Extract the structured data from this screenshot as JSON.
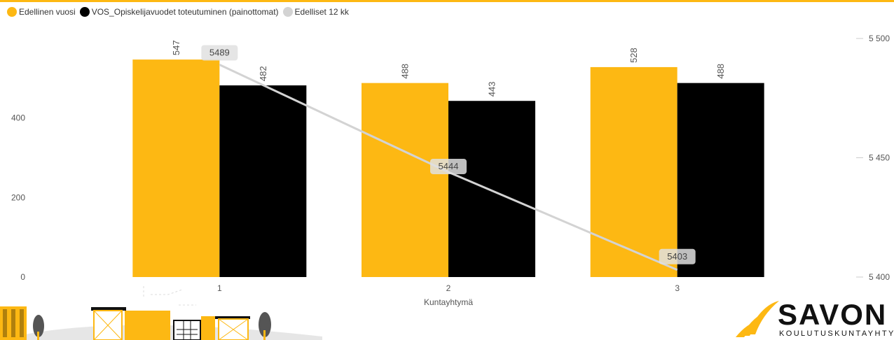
{
  "chart_data": {
    "type": "bar",
    "categories": [
      "1",
      "2",
      "3"
    ],
    "xlabel": "Kuntayhtymä",
    "series": [
      {
        "name": "Edellinen vuosi",
        "color": "#FDB813",
        "values": [
          547,
          488,
          528
        ]
      },
      {
        "name": "VOS_Opiskelijavuodet toteutuminen (painottomat)",
        "color": "#000000",
        "values": [
          482,
          443,
          488
        ]
      }
    ],
    "line_series": {
      "name": "Edelliset 12 kk",
      "color": "#D3D3D3",
      "values": [
        5489,
        5444,
        5403
      ],
      "axis": "right"
    },
    "y_left": {
      "range": [
        0,
        600
      ],
      "ticks": [
        "0",
        "200",
        "400"
      ],
      "tick_values": [
        0,
        200,
        400
      ]
    },
    "y_right": {
      "range": [
        5400,
        5500
      ],
      "ticks": [
        "5 400",
        "5 450",
        "5 500"
      ],
      "tick_values": [
        5400,
        5450,
        5500
      ]
    },
    "grid": false,
    "legend_position": "top-left"
  },
  "logo": {
    "brand_main": "SAVON",
    "brand_sub": "KOULUTUSKUNTAYHTYMÄ"
  },
  "colors": {
    "accent": "#FDB813",
    "line": "#D3D3D3",
    "text": "#555555"
  }
}
